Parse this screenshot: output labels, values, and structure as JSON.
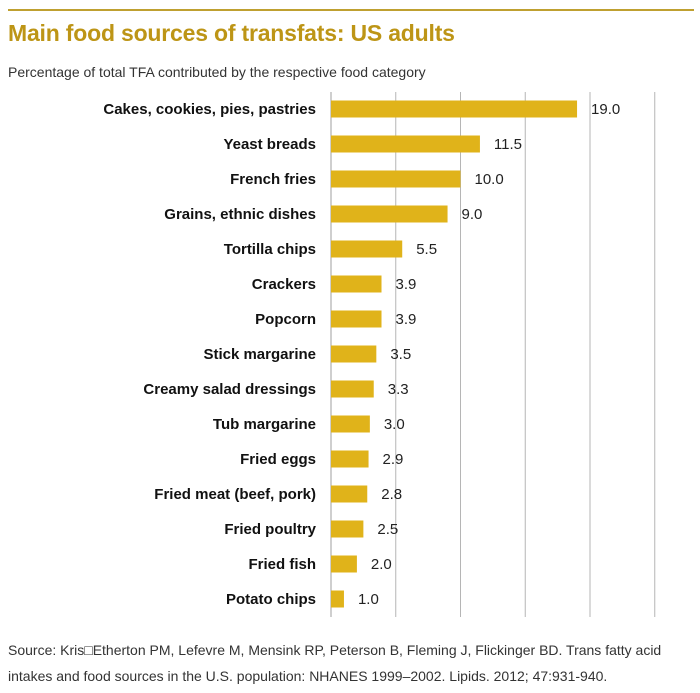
{
  "header": {
    "title": "Main food sources of transfats: US adults",
    "subtitle": "Percentage of total TFA contributed by the respective food category"
  },
  "chart_data": {
    "type": "bar",
    "orientation": "horizontal",
    "title": "Main food sources of transfats: US adults",
    "subtitle": "Percentage of total TFA contributed by the respective food category",
    "categories": [
      "Cakes, cookies, pies, pastries",
      "Yeast breads",
      "French fries",
      "Grains, ethnic dishes",
      "Tortilla chips",
      "Crackers",
      "Popcorn",
      "Stick margarine",
      "Creamy salad dressings",
      "Tub margarine",
      "Fried eggs",
      "Fried meat (beef, pork)",
      "Fried poultry",
      "Fried fish",
      "Potato chips"
    ],
    "values": [
      19.0,
      11.5,
      10.0,
      9.0,
      5.5,
      3.9,
      3.9,
      3.5,
      3.3,
      3.0,
      2.9,
      2.8,
      2.5,
      2.0,
      1.0
    ],
    "value_labels": [
      "19.0",
      "11.5",
      "10.0",
      "9.0",
      "5.5",
      "3.9",
      "3.9",
      "3.5",
      "3.3",
      "3.0",
      "2.9",
      "2.8",
      "2.5",
      "2.0",
      "1.0"
    ],
    "xlim": [
      0,
      25
    ],
    "grid": true,
    "bar_color": "#e0b31a",
    "grid_color": "#b5b5b5"
  },
  "footer": {
    "source": "Source: Kris□Etherton PM, Lefevre M, Mensink RP, Peterson B, Fleming J, Flickinger BD. Trans fatty acid intakes and food sources in the U.S. population: NHANES 1999–2002. Lipids. 2012; 47:931-940."
  }
}
